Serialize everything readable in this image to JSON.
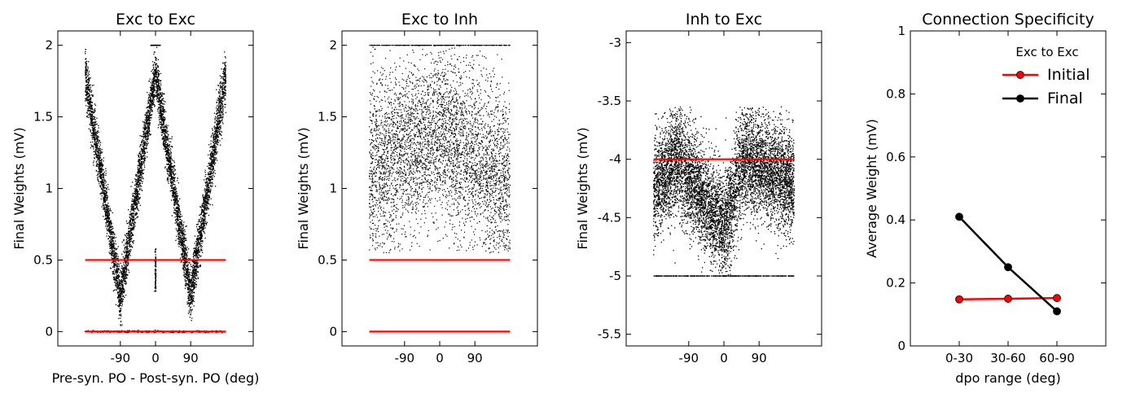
{
  "chart_data": [
    {
      "type": "scatter",
      "title": "Exc to Exc",
      "xlabel": "Pre-syn. PO - Post-syn. PO (deg)",
      "ylabel": "Final Weights (mV)",
      "xlim": [
        -250,
        250
      ],
      "ylim": [
        -0.1,
        2.1
      ],
      "xticks": [
        -90,
        0,
        90
      ],
      "xtick_labels": [
        "-90",
        "0",
        "90"
      ],
      "yticks": [
        0,
        0.5,
        1,
        1.5,
        2
      ],
      "ytick_labels": [
        "0",
        "0.5",
        "1",
        "1.5",
        "2"
      ],
      "series": [
        {
          "color": "#000000",
          "pattern": "W-shaped band: weights high at dpo = 0 (~1.8 mV) and at dpo = ±180 (~1.8 mV), minima ~0.1 mV near dpo = ±100; second band at 0 mV; short vertical cluster at dpo 0 between 0.3 and 0.6 mV"
        },
        {
          "color": "#ff0000",
          "pattern": "initial weights: horizontal bands at 0.5 mV and 0 mV spanning dpo -180 to 180"
        }
      ],
      "x": [
        -180,
        -90,
        0,
        90,
        180
      ],
      "y": [
        1.8,
        0.25,
        1.8,
        0.25,
        1.8
      ]
    },
    {
      "type": "scatter",
      "title": "Exc to Inh",
      "xlabel": "",
      "ylabel": "Final Weights (mV)",
      "xlim": [
        -250,
        250
      ],
      "ylim": [
        -0.1,
        2.1
      ],
      "xticks": [
        -90,
        0,
        90
      ],
      "xtick_labels": [
        "-90",
        "0",
        "90"
      ],
      "yticks": [
        0,
        0.5,
        1,
        1.5,
        2
      ],
      "ytick_labels": [
        "0",
        "0.5",
        "1",
        "1.5",
        "2"
      ],
      "series": [
        {
          "color": "#000000",
          "pattern": "diffuse cloud between ~0.6 and 2.0 mV centered ~1.3 mV, densest near dpo 0; saturated row at 2.0 mV"
        },
        {
          "color": "#ff0000",
          "pattern": "initial weights: horizontal bands at 0.5 mV and 0 mV spanning dpo -180 to 180"
        }
      ],
      "x": [
        -180,
        0,
        180
      ],
      "y": [
        1.15,
        1.4,
        1.05
      ]
    },
    {
      "type": "scatter",
      "title": "Inh to Exc",
      "xlabel": "",
      "ylabel": "Final Weights (mV)",
      "xlim": [
        -250,
        250
      ],
      "ylim": [
        -5.6,
        -2.9
      ],
      "xticks": [
        -90,
        0,
        90
      ],
      "xtick_labels": [
        "-90",
        "0",
        "90"
      ],
      "yticks": [
        -3,
        -3.5,
        -4,
        -4.5,
        -5,
        -5.5
      ],
      "ytick_labels": [
        "-3",
        "-3.5",
        "-4",
        "-4.5",
        "-5",
        "-5.5"
      ],
      "series": [
        {
          "color": "#000000",
          "pattern": "dense cloud between ~-5.0 and -3.6 mV, centered ~-4.2 mV, dips to ~-4.7 near dpo 0 with humps near dpo -120 and 50; floor row at -5.0 mV"
        },
        {
          "color": "#ff0000",
          "pattern": "initial weights: horizontal line at -4.0 mV spanning dpo -180 to 180"
        }
      ],
      "x": [
        -180,
        -120,
        0,
        50,
        180
      ],
      "y": [
        -4.25,
        -4.0,
        -4.6,
        -4.0,
        -4.2
      ]
    },
    {
      "type": "line",
      "title": "Connection Specificity",
      "xlabel": "dpo range (deg)",
      "ylabel": "Average Weight (mV)",
      "categories": [
        "0-30",
        "30-60",
        "60-90"
      ],
      "xlim": [
        -1,
        3
      ],
      "ylim": [
        0,
        1
      ],
      "yticks": [
        0,
        0.2,
        0.4,
        0.6,
        0.8,
        1
      ],
      "ytick_labels": [
        "0",
        "0.2",
        "0.4",
        "0.6",
        "0.8",
        "1"
      ],
      "legend": {
        "title": "Exc to Exc",
        "position": "top-right"
      },
      "series": [
        {
          "name": "Initial",
          "color": "#ff0000",
          "values": [
            0.148,
            0.15,
            0.152
          ]
        },
        {
          "name": "Final",
          "color": "#000000",
          "values": [
            0.41,
            0.25,
            0.11
          ]
        }
      ]
    }
  ]
}
